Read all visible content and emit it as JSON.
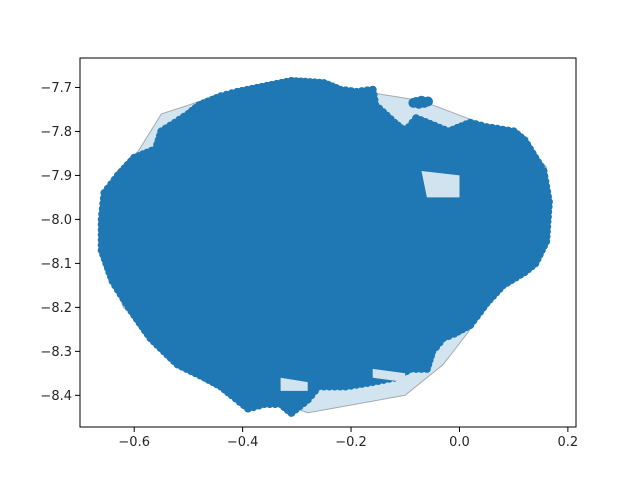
{
  "chart_data": {
    "type": "scatter",
    "title": "",
    "xlabel": "",
    "ylabel": "",
    "xlim": [
      -0.7,
      0.215
    ],
    "ylim": [
      -8.472,
      -7.633
    ],
    "grid": false,
    "legend": "none",
    "x_ticks": [
      {
        "value": -0.6,
        "label": "−0.6"
      },
      {
        "value": -0.4,
        "label": "−0.4"
      },
      {
        "value": -0.2,
        "label": "−0.2"
      },
      {
        "value": 0.0,
        "label": "0.0"
      },
      {
        "value": 0.2,
        "label": "0.2"
      }
    ],
    "y_ticks": [
      {
        "value": -7.7,
        "label": "−7.7"
      },
      {
        "value": -7.8,
        "label": "−7.8"
      },
      {
        "value": -7.9,
        "label": "−7.9"
      },
      {
        "value": -8.0,
        "label": "−8.0"
      },
      {
        "value": -8.1,
        "label": "−8.1"
      },
      {
        "value": -8.2,
        "label": "−8.2"
      },
      {
        "value": -8.3,
        "label": "−8.3"
      },
      {
        "value": -8.4,
        "label": "−8.4"
      }
    ],
    "series": [
      {
        "kind": "convex_hull",
        "color": "#1f77b4",
        "fill_opacity": 0.2,
        "x": [
          -0.31,
          -0.07,
          0.1,
          0.16,
          0.165,
          0.07,
          -0.03,
          -0.1,
          -0.28,
          -0.43,
          -0.62,
          -0.66,
          -0.66,
          -0.59,
          -0.55,
          -0.45
        ],
        "y": [
          -7.683,
          -7.73,
          -7.81,
          -7.88,
          -8.0,
          -8.17,
          -8.33,
          -8.4,
          -8.44,
          -8.37,
          -8.2,
          -8.06,
          -7.97,
          -7.84,
          -7.76,
          -7.72
        ]
      },
      {
        "kind": "point_cloud",
        "color": "#1f77b4",
        "outer_x": [
          -0.31,
          -0.25,
          -0.22,
          -0.19,
          -0.16,
          -0.155,
          -0.12,
          -0.1,
          -0.08,
          -0.02,
          0.02,
          0.05,
          0.1,
          0.12,
          0.155,
          0.165,
          0.16,
          0.14,
          0.12,
          0.08,
          0.05,
          0.02,
          -0.01,
          -0.03,
          -0.05,
          -0.06,
          -0.09,
          -0.12,
          -0.16,
          -0.21,
          -0.26,
          -0.28,
          -0.31,
          -0.33,
          -0.36,
          -0.39,
          -0.42,
          -0.44,
          -0.47,
          -0.52,
          -0.57,
          -0.61,
          -0.64,
          -0.66,
          -0.66,
          -0.655,
          -0.63,
          -0.6,
          -0.56,
          -0.55,
          -0.5,
          -0.48,
          -0.44,
          -0.41
        ],
        "outer_y": [
          -7.685,
          -7.69,
          -7.705,
          -7.71,
          -7.705,
          -7.74,
          -7.78,
          -7.8,
          -7.77,
          -7.8,
          -7.78,
          -7.79,
          -7.8,
          -7.82,
          -7.89,
          -7.96,
          -8.05,
          -8.1,
          -8.12,
          -8.15,
          -8.19,
          -8.24,
          -8.26,
          -8.27,
          -8.3,
          -8.34,
          -8.34,
          -8.36,
          -8.37,
          -8.38,
          -8.38,
          -8.41,
          -8.44,
          -8.42,
          -8.42,
          -8.43,
          -8.4,
          -8.38,
          -8.36,
          -8.33,
          -8.27,
          -8.2,
          -8.14,
          -8.07,
          -8.0,
          -7.94,
          -7.9,
          -7.86,
          -7.84,
          -7.8,
          -7.76,
          -7.74,
          -7.72,
          -7.71
        ]
      }
    ]
  }
}
